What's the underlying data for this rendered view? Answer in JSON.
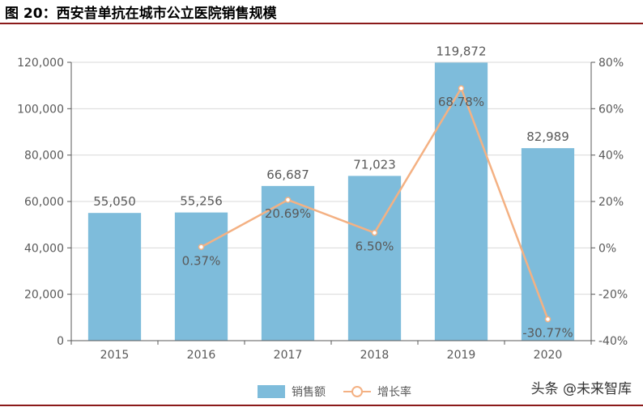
{
  "figure": {
    "title": "图 20：西安昔单抗在城市公立医院销售规模",
    "watermark": "头条 @未来智库"
  },
  "legend": {
    "bar_label": "销售额",
    "line_label": "增长率"
  },
  "colors": {
    "bar": "#7ebcdb",
    "line": "#f4b183",
    "axis": "#595959",
    "grid": "#d9d9d9",
    "title_rule": "#8b1a1a"
  },
  "chart_data": {
    "type": "bar",
    "categories": [
      "2015",
      "2016",
      "2017",
      "2018",
      "2019",
      "2020"
    ],
    "series": [
      {
        "name": "销售额",
        "kind": "bar",
        "axis": "left",
        "values": [
          55050,
          55256,
          66687,
          71023,
          119872,
          82989
        ],
        "labels": [
          "55,050",
          "55,256",
          "66,687",
          "71,023",
          "119,872",
          "82,989"
        ]
      },
      {
        "name": "增长率",
        "kind": "line",
        "axis": "right",
        "values": [
          null,
          0.37,
          20.69,
          6.5,
          68.78,
          -30.77
        ],
        "labels": [
          "",
          "0.37%",
          "20.69%",
          "6.50%",
          "68.78%",
          "-30.77%"
        ]
      }
    ],
    "y_left": {
      "lim": [
        0,
        120000
      ],
      "ticks": [
        0,
        20000,
        40000,
        60000,
        80000,
        100000,
        120000
      ],
      "tick_labels": [
        "0",
        "20,000",
        "40,000",
        "60,000",
        "80,000",
        "100,000",
        "120,000"
      ]
    },
    "y_right": {
      "lim": [
        -40,
        80
      ],
      "ticks": [
        -40,
        -20,
        0,
        20,
        40,
        60,
        80
      ],
      "tick_labels": [
        "-40%",
        "-20%",
        "0%",
        "20%",
        "40%",
        "60%",
        "80%"
      ]
    },
    "grid": true,
    "legend_position": "bottom"
  }
}
